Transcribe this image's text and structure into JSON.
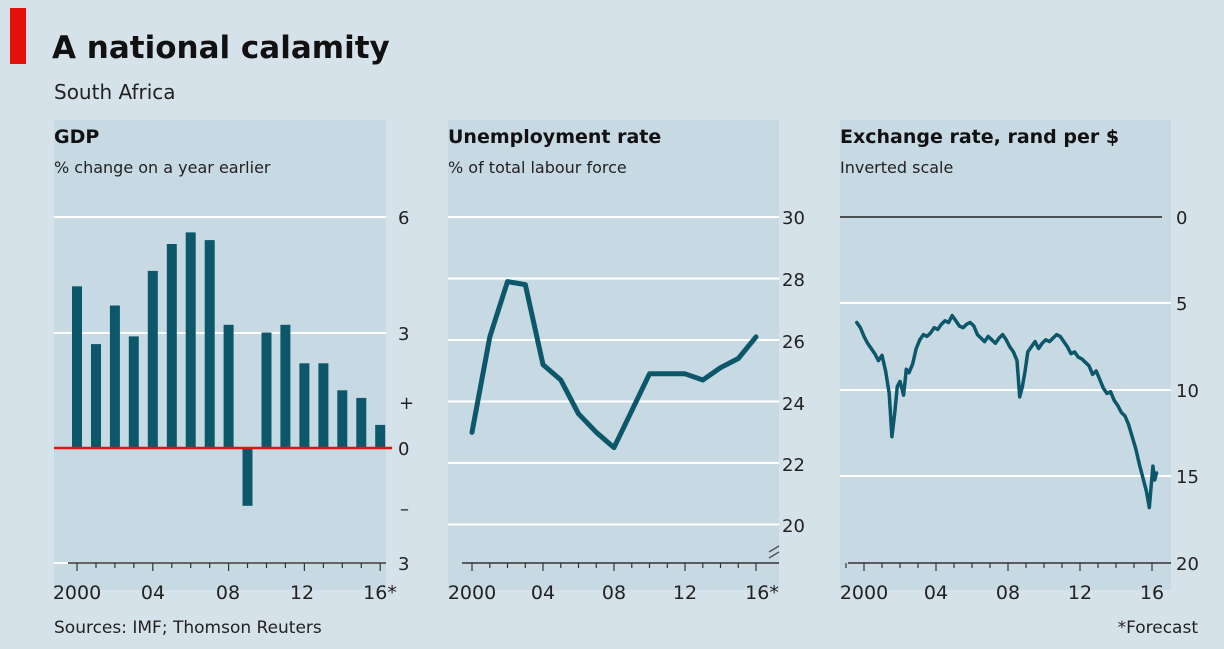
{
  "header": {
    "title": "A national calamity",
    "subtitle": "South Africa"
  },
  "footer": {
    "source": "Sources: IMF; Thomson Reuters",
    "note": "*Forecast"
  },
  "colors": {
    "bar": "#0c5769",
    "line": "#0c5769",
    "zero_line": "#e3120b",
    "panel_bg": "#c7d9e3",
    "page_bg": "#d5e2ea",
    "grid": "#ffffff"
  },
  "chart_data": [
    {
      "type": "bar",
      "title": "GDP",
      "subtitle": "% change on a year earlier",
      "x": [
        2000,
        2001,
        2002,
        2003,
        2004,
        2005,
        2006,
        2007,
        2008,
        2009,
        2010,
        2011,
        2012,
        2013,
        2014,
        2015,
        2016
      ],
      "values": [
        4.2,
        2.7,
        3.7,
        2.9,
        4.6,
        5.3,
        5.6,
        5.4,
        3.2,
        -1.5,
        3.0,
        3.2,
        2.2,
        2.2,
        1.5,
        1.3,
        0.6
      ],
      "ylim": [
        -3,
        6
      ],
      "y_ticks": [
        6,
        3,
        0
      ],
      "y_tick_labels": [
        "6",
        "3",
        "+",
        "0",
        "–",
        "3"
      ],
      "x_tick_labels": [
        "2000",
        "04",
        "08",
        "12",
        "16*"
      ],
      "grid": true
    },
    {
      "type": "line",
      "title": "Unemployment rate",
      "subtitle": "% of total labour force",
      "x": [
        2000,
        2001,
        2002,
        2003,
        2004,
        2005,
        2006,
        2007,
        2008,
        2009,
        2010,
        2011,
        2012,
        2013,
        2014,
        2015,
        2016
      ],
      "values": [
        23.0,
        26.1,
        27.9,
        27.8,
        25.2,
        24.7,
        23.6,
        23.0,
        22.5,
        23.7,
        24.9,
        24.9,
        24.9,
        24.7,
        25.1,
        25.4,
        26.1
      ],
      "ylim": [
        19.5,
        30
      ],
      "y_ticks": [
        20,
        22,
        24,
        26,
        28,
        30
      ],
      "y_tick_labels": [
        "20",
        "22",
        "24",
        "26",
        "28",
        "30"
      ],
      "x_tick_labels": [
        "2000",
        "04",
        "08",
        "12",
        "16*"
      ],
      "grid": true
    },
    {
      "type": "line",
      "title": "Exchange rate, rand per $",
      "subtitle": "Inverted scale",
      "inverted": true,
      "x": [
        1999.6,
        1999.8,
        2000.0,
        2000.2,
        2000.4,
        2000.6,
        2000.8,
        2001.0,
        2001.2,
        2001.4,
        2001.55,
        2001.7,
        2001.85,
        2002.0,
        2002.2,
        2002.35,
        2002.5,
        2002.7,
        2002.9,
        2003.1,
        2003.3,
        2003.5,
        2003.7,
        2003.9,
        2004.1,
        2004.3,
        2004.5,
        2004.7,
        2004.9,
        2005.1,
        2005.3,
        2005.5,
        2005.7,
        2005.9,
        2006.1,
        2006.3,
        2006.5,
        2006.7,
        2006.9,
        2007.1,
        2007.3,
        2007.5,
        2007.7,
        2007.9,
        2008.1,
        2008.3,
        2008.5,
        2008.65,
        2008.8,
        2008.95,
        2009.1,
        2009.3,
        2009.5,
        2009.7,
        2009.9,
        2010.1,
        2010.3,
        2010.5,
        2010.7,
        2010.9,
        2011.1,
        2011.3,
        2011.5,
        2011.7,
        2011.9,
        2012.1,
        2012.3,
        2012.5,
        2012.7,
        2012.9,
        2013.1,
        2013.3,
        2013.5,
        2013.7,
        2013.9,
        2014.1,
        2014.3,
        2014.5,
        2014.7,
        2014.9,
        2015.1,
        2015.3,
        2015.5,
        2015.7,
        2015.85,
        2015.95,
        2016.05,
        2016.15,
        2016.25
      ],
      "values": [
        6.1,
        6.4,
        6.9,
        7.3,
        7.6,
        7.9,
        8.3,
        8.0,
        8.9,
        10.2,
        12.7,
        11.4,
        9.8,
        9.5,
        10.3,
        8.8,
        9.0,
        8.5,
        7.6,
        7.1,
        6.8,
        6.9,
        6.7,
        6.4,
        6.5,
        6.2,
        6.0,
        6.1,
        5.7,
        6.0,
        6.3,
        6.4,
        6.2,
        6.1,
        6.3,
        6.8,
        7.0,
        7.2,
        6.9,
        7.1,
        7.3,
        7.0,
        6.8,
        7.1,
        7.5,
        7.8,
        8.3,
        10.4,
        9.8,
        8.9,
        7.8,
        7.5,
        7.2,
        7.6,
        7.3,
        7.1,
        7.2,
        7.0,
        6.8,
        6.9,
        7.2,
        7.5,
        7.9,
        7.8,
        8.1,
        8.2,
        8.4,
        8.6,
        9.1,
        8.9,
        9.4,
        9.9,
        10.2,
        10.1,
        10.6,
        10.9,
        11.3,
        11.5,
        12.0,
        12.7,
        13.4,
        14.3,
        15.1,
        15.9,
        16.8,
        15.6,
        14.4,
        15.2,
        14.8
      ],
      "ylim": [
        0,
        20
      ],
      "y_ticks": [
        0,
        5,
        10,
        15,
        20
      ],
      "y_tick_labels": [
        "0",
        "5",
        "10",
        "15",
        "20"
      ],
      "x_tick_labels": [
        "2000",
        "04",
        "08",
        "12",
        "16"
      ],
      "grid": true
    }
  ]
}
